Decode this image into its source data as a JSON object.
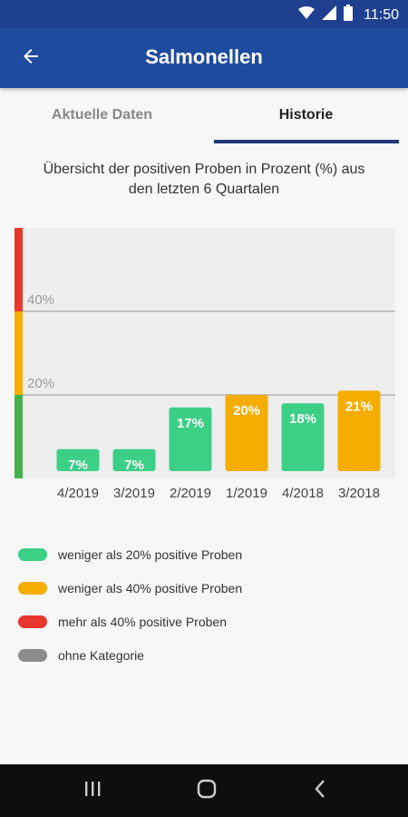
{
  "status_bar": {
    "time": "11:50"
  },
  "app_bar": {
    "title": "Salmonellen"
  },
  "tabs": [
    {
      "label": "Aktuelle Daten",
      "active": false
    },
    {
      "label": "Historie",
      "active": true
    }
  ],
  "subtitle_line1": "Übersicht der positiven Proben in Prozent (%) aus",
  "subtitle_line2": "den letzten 6 Quartalen",
  "chart_data": {
    "type": "bar",
    "categories": [
      "4/2019",
      "3/2019",
      "2/2019",
      "1/2019",
      "4/2018",
      "3/2018"
    ],
    "values": [
      7,
      7,
      17,
      20,
      18,
      21
    ],
    "value_labels": [
      "7%",
      "7%",
      "17%",
      "20%",
      "18%",
      "21%"
    ],
    "bar_colors": [
      "#3ccf86",
      "#3ccf86",
      "#3ccf86",
      "#f5ad00",
      "#3ccf86",
      "#f5ad00"
    ],
    "gridlines": [
      {
        "value": 40,
        "label": "40%"
      },
      {
        "value": 20,
        "label": "20%"
      }
    ],
    "ylim": [
      0,
      60
    ],
    "threshold_bands": [
      {
        "from": 0,
        "to": 20,
        "color": "#44b14a"
      },
      {
        "from": 20,
        "to": 40,
        "color": "#f5ad00"
      },
      {
        "from": 40,
        "to": 60,
        "color": "#e8372c"
      }
    ]
  },
  "legend": [
    {
      "label": "weniger als 20% positive Proben",
      "color": "#3ccf86"
    },
    {
      "label": "weniger als 40% positive Proben",
      "color": "#f5ad00"
    },
    {
      "label": "mehr als 40% positive Proben",
      "color": "#e8372c"
    },
    {
      "label": "ohne Kategorie",
      "color": "#8c8c8c"
    }
  ]
}
